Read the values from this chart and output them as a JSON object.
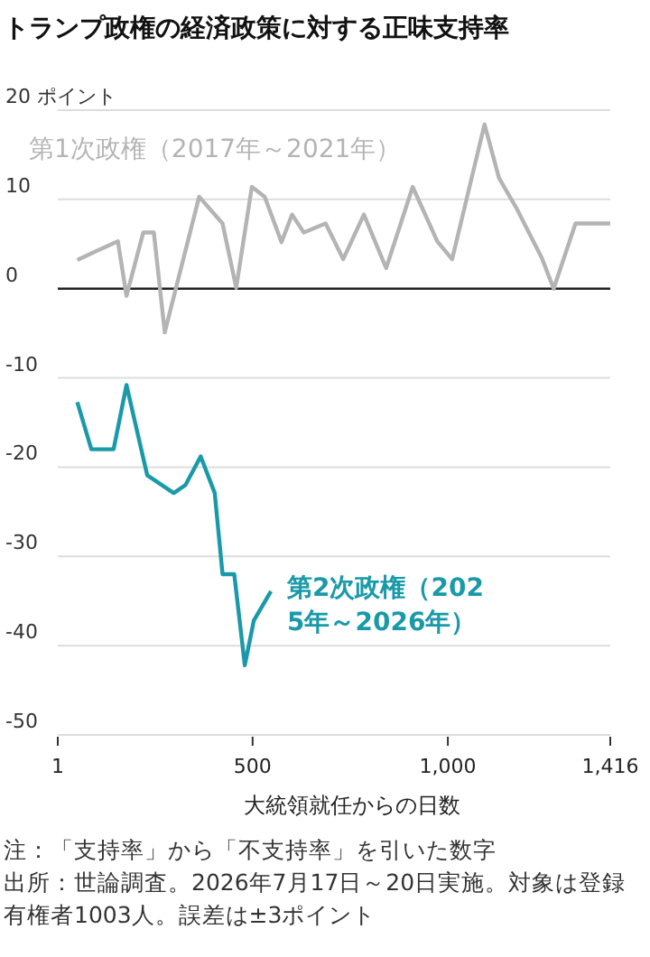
{
  "chart_data": {
    "type": "line",
    "title": "トランプ政権の経済政策に対する正味支持率",
    "xlabel": "大統領就任からの日数",
    "xlim": [
      1,
      1416
    ],
    "xticks": [
      1,
      500,
      {
        "value": 1000,
        "label": "1,000"
      },
      {
        "value": 1416,
        "label": "1,416"
      }
    ],
    "ylim": [
      -50,
      20
    ],
    "yticks": [
      -50,
      -40,
      -30,
      -20,
      -10,
      0,
      10,
      {
        "value": 20,
        "label": "20 ポイント"
      }
    ],
    "grid": "y",
    "legend": false,
    "marker": "none",
    "line_style": "solid",
    "ref_lines": [
      {
        "axis": "y",
        "value": 0,
        "color": "#222222"
      }
    ],
    "series": [
      {
        "name": "第1次政権（2017年～2021年）",
        "color": "#b4b4b4",
        "x": [
          51,
          99,
          155,
          177,
          220,
          247,
          275,
          363,
          423,
          458,
          498,
          531,
          574,
          601,
          631,
          687,
          732,
          785,
          842,
          910,
          973,
          1011,
          1094,
          1131,
          1176,
          1241,
          1271,
          1327,
          1416
        ],
        "values": [
          3.2,
          4.2,
          5.3,
          -0.8,
          6.3,
          6.3,
          -4.9,
          10.3,
          7.3,
          0.1,
          11.4,
          10.3,
          5.2,
          8.3,
          6.3,
          7.3,
          3.3,
          8.3,
          2.3,
          11.4,
          5.3,
          3.3,
          18.4,
          12.4,
          9,
          3.4,
          0,
          7.3,
          7.3
        ]
      },
      {
        "name": "第2次政権（2025年～2026年）",
        "color": "#1a9aa8",
        "x": [
          51,
          87,
          144,
          177,
          230,
          298,
          328,
          367,
          403,
          423,
          453,
          480,
          503,
          547
        ],
        "values": [
          -12.7,
          -18,
          -18,
          -10.8,
          -20.9,
          -22.9,
          -22,
          -18.8,
          -22.9,
          -32,
          -32,
          -42.2,
          -37.2,
          -33.9
        ]
      }
    ],
    "annotations": [
      "注：「支持率」から「不支持率」を引いた数字",
      "出所：世論調査。2026年7月17日～20日実施。対象は登録有権者1003人。誤差は±3ポイント"
    ]
  }
}
